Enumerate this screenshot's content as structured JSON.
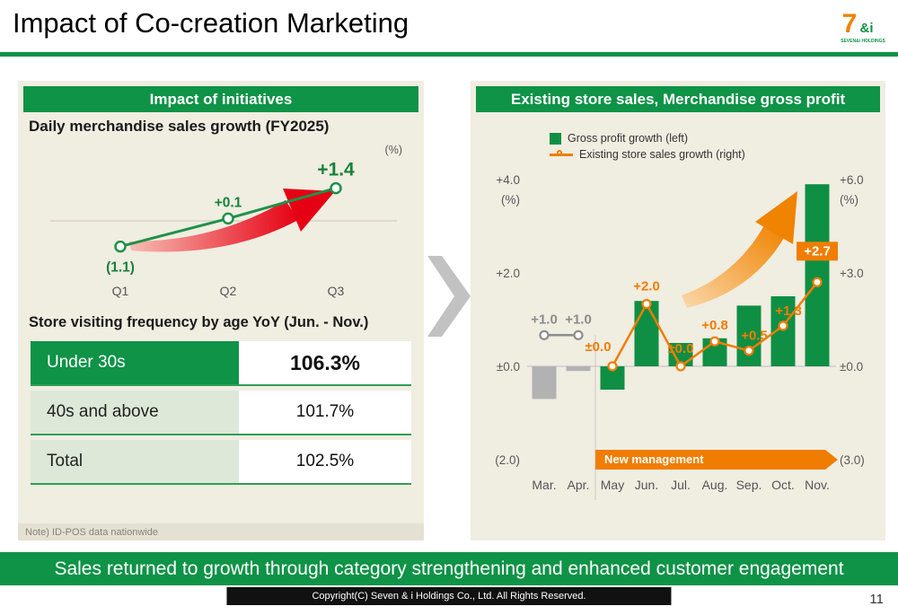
{
  "header": {
    "title": "Impact of Co-creation Marketing",
    "logo": {
      "seven": "7",
      "andi": "&i",
      "text": "SEVEN&i HOLDINGS"
    }
  },
  "left_panel": {
    "header": "Impact of initiatives",
    "note": "Note) ID-POS data nationwide",
    "visit_table": {
      "title": "Store visiting frequency by age YoY (Jun. - Nov.)",
      "rows": [
        {
          "label": "Under 30s",
          "value": "106.3%"
        },
        {
          "label": "40s and above",
          "value": "101.7%"
        },
        {
          "label": "Total",
          "value": "102.5%"
        }
      ]
    }
  },
  "right_panel": {
    "header": "Existing store sales, Merchandise gross profit",
    "legend": [
      {
        "label": "Gross profit growth (left)"
      },
      {
        "label": "Existing store sales growth (right)"
      }
    ],
    "banner": "New management"
  },
  "footer": {
    "message": "Sales returned to growth through category strengthening and enhanced customer engagement",
    "copyright": "Copyright(C) Seven & i Holdings Co., Ltd. All Rights Reserved.",
    "page_number": "11"
  },
  "colors": {
    "brand_green": "#0e9347",
    "brand_orange": "#f07d00",
    "accent_red": "#e60013",
    "bar_gray": "#b2b2b2",
    "panel_beige": "#f0ede1"
  },
  "chart_data": [
    {
      "id": "daily-merchandise-sales-growth",
      "type": "line",
      "title": "Daily merchandise sales growth (FY2025)",
      "unit_label": "(%)",
      "categories": [
        "Q1",
        "Q2",
        "Q3"
      ],
      "values": [
        -1.1,
        0.1,
        1.4
      ],
      "point_labels": [
        "(1.1)",
        "+0.1",
        "+1.4"
      ],
      "line_color": "#1f9148"
    },
    {
      "id": "existing-store-sales-and-gross-profit",
      "type": "combo",
      "categories": [
        "Mar.",
        "Apr.",
        "May",
        "Jun.",
        "Jul.",
        "Aug.",
        "Sep.",
        "Oct.",
        "Nov."
      ],
      "axes": {
        "left": {
          "unit": "(%)",
          "ticks": [
            "+4.0",
            "+2.0",
            "±0.0",
            "(2.0)"
          ],
          "values": [
            4,
            2,
            0,
            -2
          ]
        },
        "right": {
          "unit": "(%)",
          "ticks": [
            "+6.0",
            "+3.0",
            "±0.0",
            "(3.0)"
          ],
          "values": [
            6,
            3,
            0,
            -3
          ]
        }
      },
      "series": [
        {
          "name": "Gross profit growth (left)",
          "type": "bar",
          "axis": "left",
          "values": [
            -0.7,
            -0.1,
            -0.5,
            1.4,
            0.5,
            0.6,
            1.3,
            1.5,
            3.9
          ],
          "colors": [
            "#b2b2b2",
            "#b2b2b2",
            "#0f8f44",
            "#0f8f44",
            "#0f8f44",
            "#0f8f44",
            "#0f8f44",
            "#0f8f44",
            "#0f8f44"
          ]
        },
        {
          "name": "Existing store sales growth (right)",
          "type": "line",
          "axis": "right",
          "values": [
            1.0,
            1.0,
            0.0,
            2.0,
            0.0,
            0.8,
            0.5,
            1.3,
            2.7
          ],
          "labels": [
            "+1.0",
            "+1.0",
            "±0.0",
            "+2.0",
            "±0.0",
            "+0.8",
            "+0.5",
            "+1.3",
            "+2.7"
          ],
          "box_label_index": 8,
          "segments": [
            {
              "indices": [
                0,
                1
              ],
              "color": "#8c8c8c"
            },
            {
              "indices": [
                2,
                3,
                4,
                5,
                6,
                7,
                8
              ],
              "color": "#f07d00"
            }
          ]
        }
      ]
    }
  ]
}
